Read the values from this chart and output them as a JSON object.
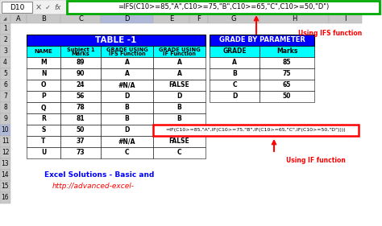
{
  "formula_bar_text": "=IFS(C10>=85,\"A\",C10>=75,\"B\",C10>=65,\"C\",C10>=50,\"D\")",
  "cell_ref": "D10",
  "col_headers": [
    "A",
    "B",
    "C",
    "D",
    "E",
    "F",
    "G",
    "H",
    "I"
  ],
  "table1_header": "TABLE -1",
  "table1_col_labels": [
    "NAME",
    "Subject 1\nMarks",
    "GRADE USING\nIFS Function",
    "GRADE USING\nIF Function"
  ],
  "table1_data": [
    [
      "M",
      "89",
      "A",
      "A"
    ],
    [
      "N",
      "90",
      "A",
      "A"
    ],
    [
      "O",
      "24",
      "#N/A",
      "FALSE"
    ],
    [
      "P",
      "56",
      "D",
      "D"
    ],
    [
      "Q",
      "78",
      "B",
      "B"
    ],
    [
      "R",
      "81",
      "B",
      "B"
    ],
    [
      "S",
      "50",
      "D",
      ""
    ],
    [
      "T",
      "37",
      "#N/A",
      "FALSE"
    ],
    [
      "U",
      "73",
      "C",
      "C"
    ]
  ],
  "if_formula": "=IF(C10>=85,\"A\",IF(C10>=75,\"B\",IF(C10>=65,\"C\",IF(C10>=50,\"D\"))))",
  "table2_header": "GRADE BY PARAMETER",
  "table2_col_labels": [
    "GRADE",
    "Marks"
  ],
  "table2_data": [
    [
      "A",
      "85"
    ],
    [
      "B",
      "75"
    ],
    [
      "C",
      "65"
    ],
    [
      "D",
      "50"
    ]
  ],
  "footer_line1": "Excel Solutions - Basic and",
  "footer_line2": "http://advanced-excel-",
  "using_ifs_text": "Using IFS function",
  "using_if_text": "Using IF function",
  "bg_color": "#FFFFFF",
  "header_blue": "#0000FF",
  "header_cyan": "#00FFFF",
  "formula_box_green": "#00AA00",
  "if_formula_box_red": "#FF0000",
  "arrow_color": "#FF0000",
  "excel_header_bg": "#C8C8C8",
  "excel_highlight_col": "#B0B8D8"
}
